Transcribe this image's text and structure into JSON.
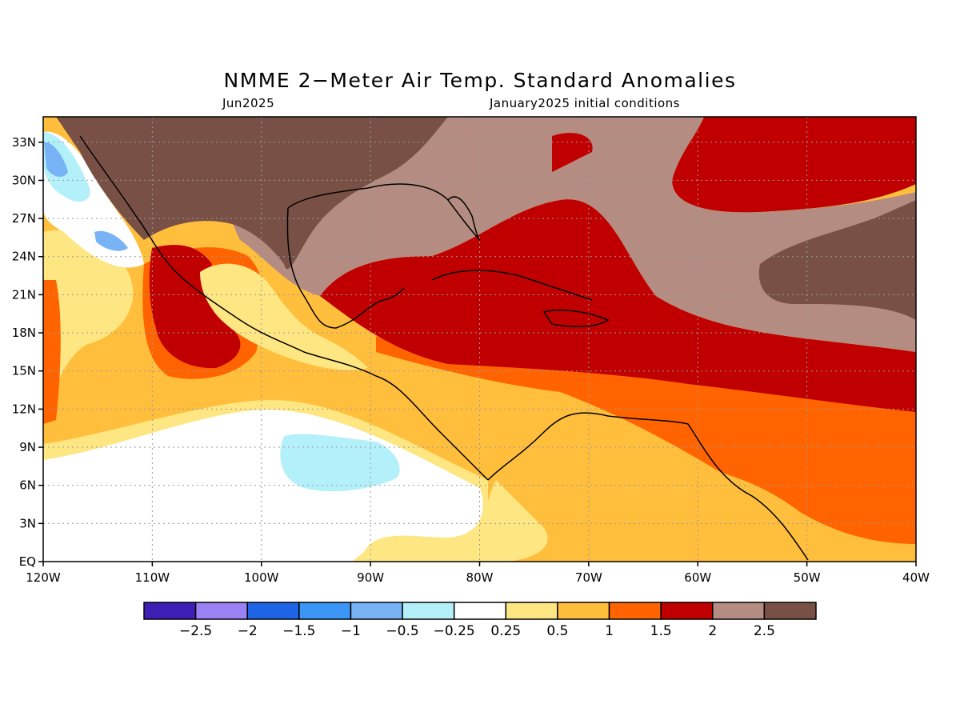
{
  "title": "NMME 2−Meter Air Temp. Standard Anomalies",
  "valid_month": "Jun2025",
  "init_conditions": "January2025 initial conditions",
  "map": {
    "lon_range": [
      -120,
      -40
    ],
    "lat_range": [
      0,
      35
    ],
    "lon_ticks": [
      {
        "value": -120,
        "label": "120W"
      },
      {
        "value": -110,
        "label": "110W"
      },
      {
        "value": -100,
        "label": "100W"
      },
      {
        "value": -90,
        "label": "90W"
      },
      {
        "value": -80,
        "label": "80W"
      },
      {
        "value": -70,
        "label": "70W"
      },
      {
        "value": -60,
        "label": "60W"
      },
      {
        "value": -50,
        "label": "50W"
      },
      {
        "value": -40,
        "label": "40W"
      }
    ],
    "lat_ticks": [
      {
        "value": 0,
        "label": "EQ"
      },
      {
        "value": 3,
        "label": "3N"
      },
      {
        "value": 6,
        "label": "6N"
      },
      {
        "value": 9,
        "label": "9N"
      },
      {
        "value": 12,
        "label": "12N"
      },
      {
        "value": 15,
        "label": "15N"
      },
      {
        "value": 18,
        "label": "18N"
      },
      {
        "value": 21,
        "label": "21N"
      },
      {
        "value": 24,
        "label": "24N"
      },
      {
        "value": 27,
        "label": "27N"
      },
      {
        "value": 30,
        "label": "30N"
      },
      {
        "value": 33,
        "label": "33N"
      }
    ],
    "grid": true
  },
  "colorbar": {
    "colors": [
      "#3d1fb5",
      "#9a82f5",
      "#1e64e6",
      "#3c96f5",
      "#78b4f5",
      "#b4f0fa",
      "#ffffff",
      "#fee682",
      "#ffbe3c",
      "#ff6400",
      "#c00000",
      "#b48c82",
      "#785046"
    ],
    "labels": [
      "−2.5",
      "−2",
      "−1.5",
      "−1",
      "−0.5",
      "−0.25",
      "0.25",
      "0.5",
      "1",
      "1.5",
      "2",
      "2.5"
    ]
  }
}
